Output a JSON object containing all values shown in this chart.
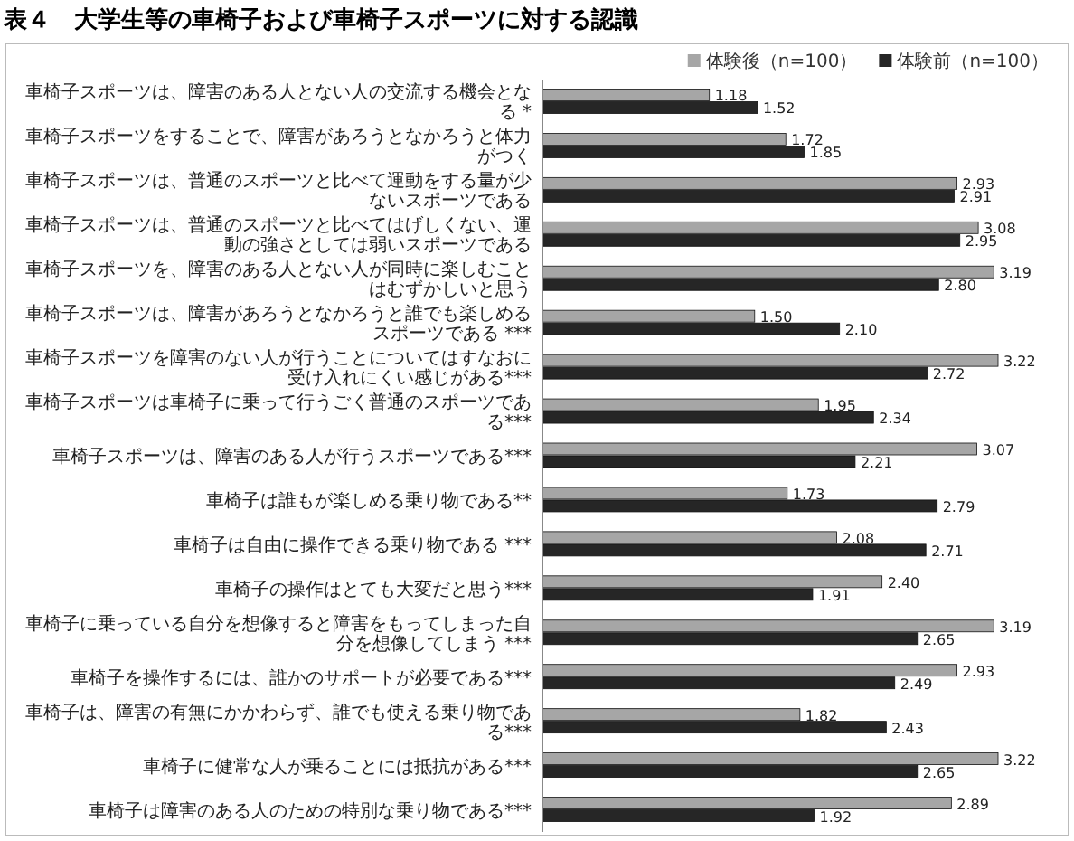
{
  "chart_data": {
    "type": "bar",
    "orientation": "horizontal",
    "title": "表４　大学生等の車椅子および車椅子スポーツに対する認識",
    "legend": "top right",
    "categories": [
      "車椅子スポーツは、障害のある人とない人の交流する機会となる *",
      "車椅子スポーツをすることで、障害があろうとなかろうと体力がつく",
      "車椅子スポーツは、普通のスポーツと比べて運動をする量が少ないスポーツである",
      "車椅子スポーツは、普通のスポーツと比べてはげしくない、運動の強さとしては弱いスポーツである",
      "車椅子スポーツを、障害のある人とない人が同時に楽しむことはむずかしいと思う",
      "車椅子スポーツは、障害があろうとなかろうと誰でも楽しめるスポーツである ***",
      "車椅子スポーツを障害のない人が行うことについてはすなおに受け入れにくい感じがある***",
      "車椅子スポーツは車椅子に乗って行うごく普通のスポーツである***",
      "車椅子スポーツは、障害のある人が行うスポーツである***",
      "車椅子は誰もが楽しめる乗り物である**",
      "車椅子は自由に操作できる乗り物である ***",
      "車椅子の操作はとても大変だと思う***",
      "車椅子に乗っている自分を想像すると障害をもってしまった自分を想像してしまう ***",
      "車椅子を操作するには、誰かのサポートが必要である***",
      "車椅子は、障害の有無にかかわらず、誰でも使える乗り物である***",
      "車椅子に健常な人が乗ることには抵抗がある***",
      "車椅子は障害のある人のための特別な乗り物である***"
    ],
    "series": [
      {
        "name": "体験後（n=100）",
        "color": "#a6a6a6",
        "values": [
          1.18,
          1.72,
          2.93,
          3.08,
          3.19,
          1.5,
          3.22,
          1.95,
          3.07,
          1.73,
          2.08,
          2.4,
          3.19,
          2.93,
          1.82,
          3.22,
          2.89
        ],
        "value_labels": [
          "1.18",
          "1.72",
          "2.93",
          "3.08",
          "3.19",
          "1.50",
          "3.22",
          "1.95",
          "3.07",
          "1.73",
          "2.08",
          "2.40",
          "3.19",
          "2.93",
          "1.82",
          "3.22",
          "2.89"
        ]
      },
      {
        "name": "体験前（n=100）",
        "color": "#262626",
        "values": [
          1.52,
          1.85,
          2.91,
          2.95,
          2.8,
          2.1,
          2.72,
          2.34,
          2.21,
          2.79,
          2.71,
          1.91,
          2.65,
          2.49,
          2.43,
          2.65,
          1.92
        ],
        "value_labels": [
          "1.52",
          "1.85",
          "2.91",
          "2.95",
          "2.80",
          "2.10",
          "2.72",
          "2.34",
          "2.21",
          "2.79",
          "2.71",
          "1.91",
          "2.65",
          "2.49",
          "2.43",
          "2.65",
          "1.92"
        ]
      }
    ]
  }
}
